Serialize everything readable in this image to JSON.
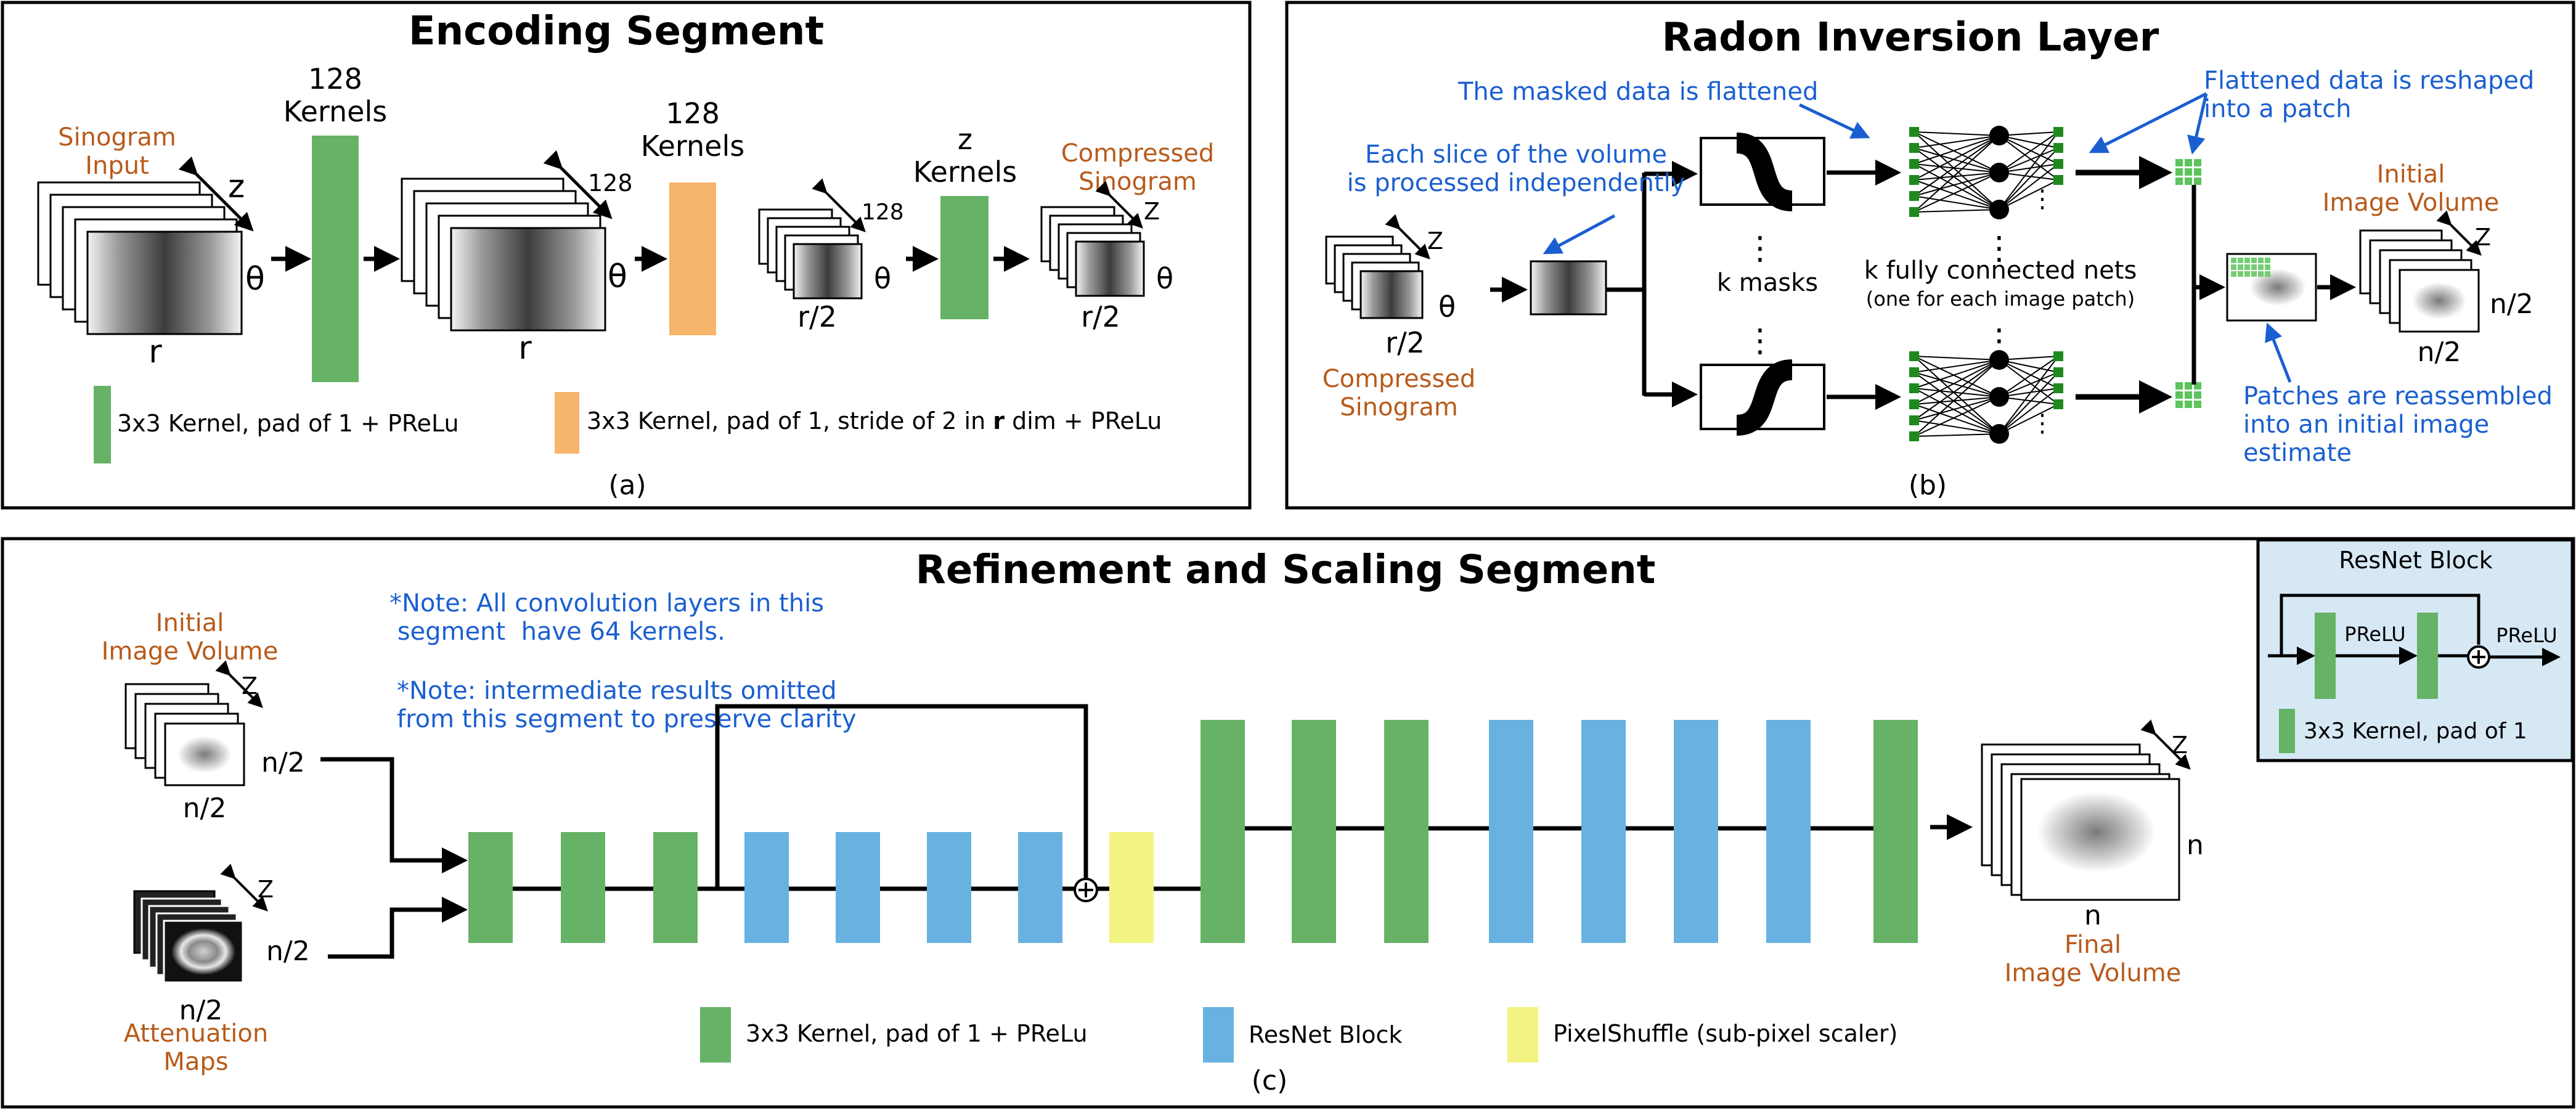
{
  "colors": {
    "conv_green": "#66b266",
    "stride_orange": "#f7b46b",
    "resnet_blue": "#67b2e0",
    "pixelshuffle_yellow": "#f3f383",
    "annotation_blue": "#1a5fd0",
    "label_orange": "#b85a1a",
    "resnet_panel_bg": "#d7e8f5"
  },
  "encoding": {
    "title": "Encoding Segment",
    "caption": "(a)",
    "sinogram_input": "Sinogram\nInput",
    "z": "z",
    "theta": "θ",
    "r": "r",
    "n128": "128",
    "kernels128a": "128\nKernels",
    "kernels128b": "128\nKernels",
    "zkernels": "z\nKernels",
    "r2": "r/2",
    "compressed": "Compressed\nSinogram",
    "Z": "Z",
    "legend_green": "3x3 Kernel, pad of 1 + PReLu",
    "legend_orange_pre": "3x3 Kernel, pad of 1, stride of 2 in ",
    "legend_orange_bold": "r",
    "legend_orange_post": " dim + PReLu"
  },
  "radon": {
    "title": "Radon Inversion Layer",
    "caption": "(b)",
    "note_flatten": "The masked data is flattened",
    "note_slice": "Each slice of the volume\nis processed independently",
    "note_reshape": "Flattened data is reshaped\ninto a patch",
    "note_reassemble": "Patches are reassembled\ninto an initial image\nestimate",
    "k_masks": "k masks",
    "k_nets": "k fully connected nets",
    "k_nets_sub": "(one for each image patch)",
    "compressed": "Compressed\nSinogram",
    "initial": "Initial\nImage Volume",
    "Z": "Z",
    "theta": "θ",
    "r2": "r/2",
    "n2": "n/2"
  },
  "refine": {
    "title": "Refinement and Scaling Segment",
    "caption": "(c)",
    "note1": "*Note: All convolution layers in this\n segment  have 64 kernels.",
    "note2": "*Note: intermediate results omitted\nfrom this segment to preserve clarity",
    "initial": "Initial\nImage Volume",
    "attenuation": "Attenuation\nMaps",
    "final": "Final\nImage Volume",
    "Z": "Z",
    "n2": "n/2",
    "n": "n",
    "legend_green": "3x3 Kernel, pad of 1 + PReLu",
    "legend_blue": "ResNet Block",
    "legend_yellow": "PixelShuffle (sub-pixel scaler)"
  },
  "resnet_inset": {
    "title": "ResNet Block",
    "prelu": "PReLU",
    "legend": "3x3 Kernel, pad of 1"
  }
}
